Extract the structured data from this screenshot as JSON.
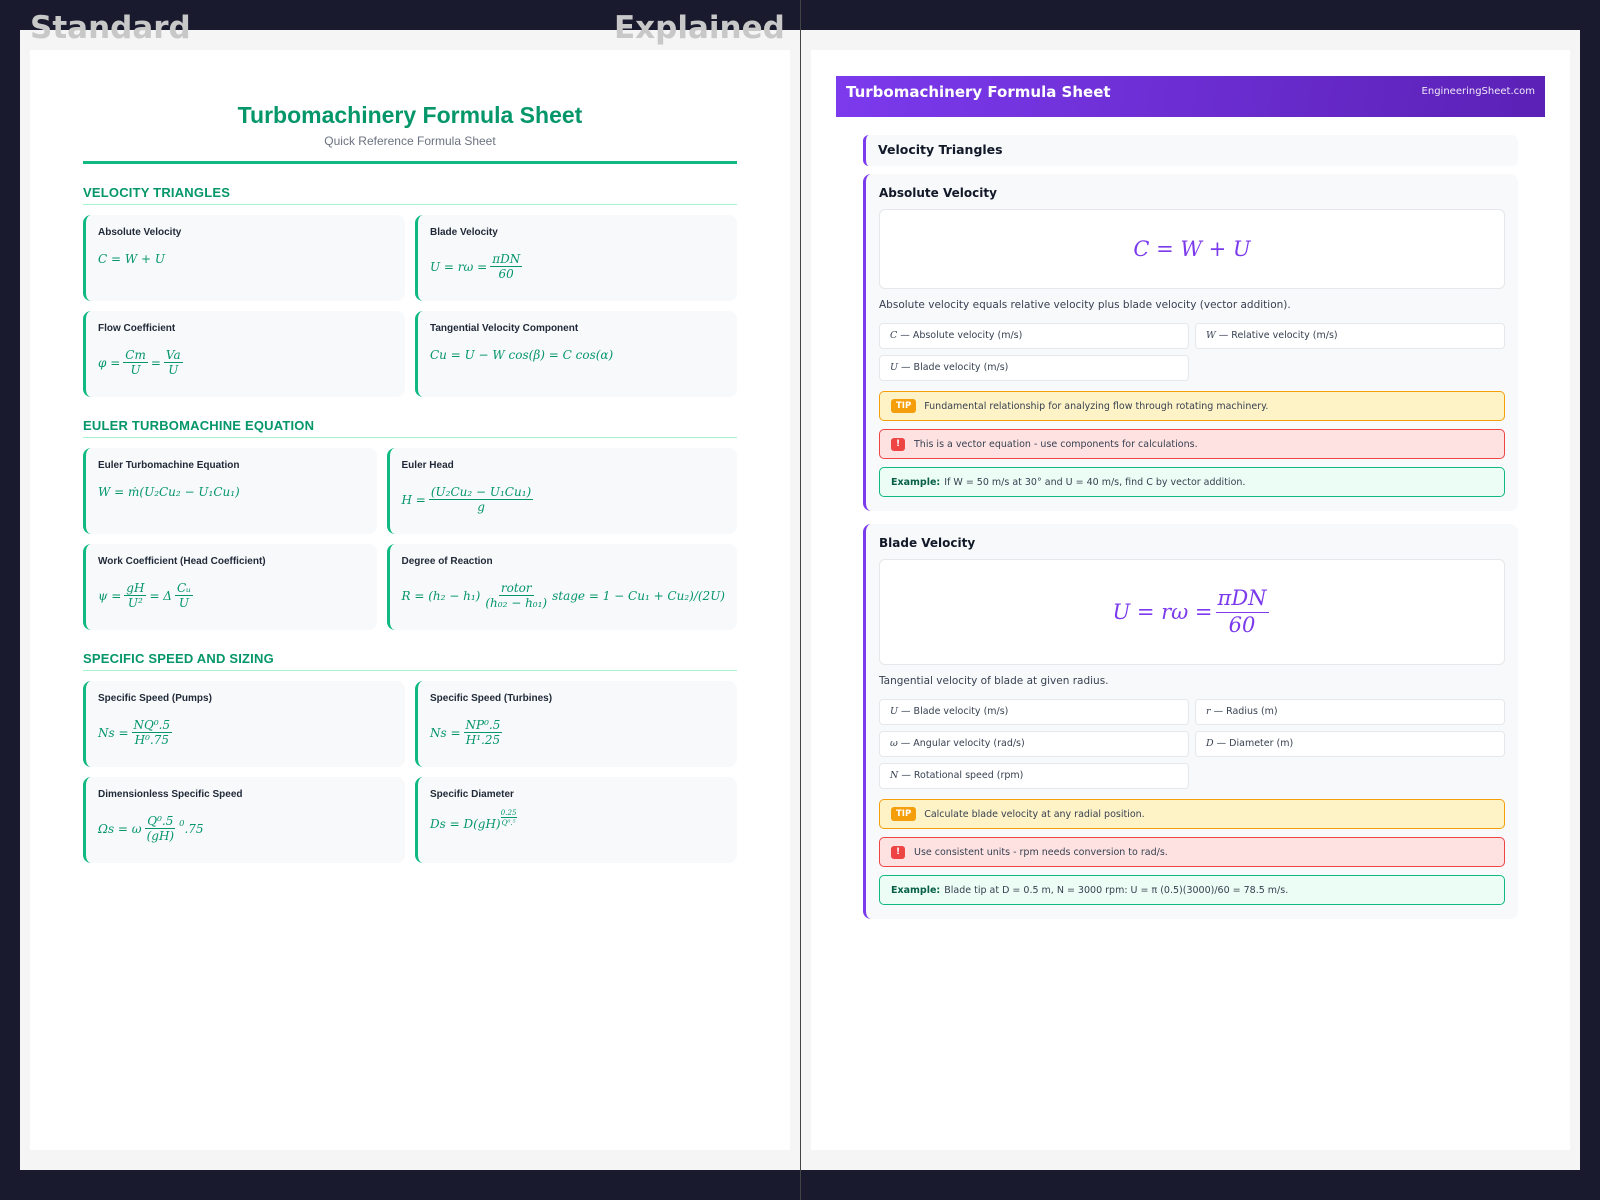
{
  "labels": {
    "standard": "Standard",
    "explained": "Explained"
  },
  "colors": {
    "background": "#1a1a2e",
    "standard_accent": "#059669",
    "explained_accent": "#7c3aed",
    "tip": "#f59e0b",
    "warning": "#ef4444",
    "example": "#10b981"
  },
  "standard": {
    "title": "Turbomachinery Formula Sheet",
    "subtitle": "Quick Reference Formula Sheet",
    "sections": [
      {
        "heading": "VELOCITY TRIANGLES",
        "cards": [
          {
            "name": "Absolute Velocity",
            "formula": [
              "C = W + U"
            ]
          },
          {
            "name": "Blade Velocity",
            "formula": [
              "U = rω =",
              {
                "frac": [
                  "πDN",
                  "60"
                ]
              }
            ]
          },
          {
            "name": "Flow Coefficient",
            "formula": [
              "φ =",
              {
                "frac": [
                  "Cm",
                  "U"
                ]
              },
              "=",
              {
                "frac": [
                  "Va",
                  "U"
                ]
              }
            ]
          },
          {
            "name": "Tangential Velocity Component",
            "formula": [
              "Cu = U − W cos(β) = C cos(α)"
            ]
          }
        ]
      },
      {
        "heading": "EULER TURBOMACHINE EQUATION",
        "cards": [
          {
            "name": "Euler Turbomachine Equation",
            "formula": [
              "W = ṁ(U₂Cu₂ − U₁Cu₁)"
            ]
          },
          {
            "name": "Euler Head",
            "formula": [
              "H =",
              {
                "frac": [
                  "(U₂Cu₂ − U₁Cu₁)",
                  "g"
                ]
              }
            ]
          },
          {
            "name": "Work Coefficient (Head Coefficient)",
            "formula": [
              "ψ =",
              {
                "frac": [
                  "gH",
                  "U²"
                ]
              },
              "= Δ",
              {
                "frac": [
                  "Cᵤ",
                  "U"
                ]
              }
            ]
          },
          {
            "name": "Degree of Reaction",
            "formula": [
              "R = (h₂ − h₁)",
              {
                "frac": [
                  "rotor",
                  "(h₀₂ − h₀₁)"
                ]
              },
              "stage = 1 − Cu₁ + Cu₂)/(2U)"
            ]
          }
        ]
      },
      {
        "heading": "SPECIFIC SPEED AND SIZING",
        "cards": [
          {
            "name": "Specific Speed (Pumps)",
            "formula": [
              "Ns =",
              {
                "frac": [
                  "NQ⁰.5",
                  "H⁰.75"
                ]
              }
            ]
          },
          {
            "name": "Specific Speed (Turbines)",
            "formula": [
              "Ns =",
              {
                "frac": [
                  "NP⁰.5",
                  "H¹.25"
                ]
              }
            ]
          },
          {
            "name": "Dimensionless Specific Speed",
            "formula": [
              "Ωs = ω",
              {
                "frac": [
                  "Q⁰.5",
                  "(gH)"
                ]
              },
              {
                "sup": "0"
              },
              ".75"
            ]
          },
          {
            "name": "Specific Diameter",
            "formula": [
              "Ds = D(gH)",
              {
                "supfrac": [
                  "0.25",
                  "Q⁰.⁵"
                ]
              }
            ]
          }
        ]
      }
    ]
  },
  "explained": {
    "header_title": "Turbomachinery Formula Sheet",
    "header_site": "EngineeringSheet.com",
    "section": "Velocity Triangles",
    "tip_badge": "TIP",
    "warn_badge": "!",
    "example_label": "Example:",
    "cards": [
      {
        "name": "Absolute Velocity",
        "formula": [
          "C = W + U"
        ],
        "description": "Absolute velocity equals relative velocity plus blade velocity (vector addition).",
        "vars": [
          {
            "sym": "C",
            "desc": " — Absolute velocity (m/s)"
          },
          {
            "sym": "W",
            "desc": " — Relative velocity (m/s)"
          },
          {
            "sym": "U",
            "desc": " — Blade velocity (m/s)"
          }
        ],
        "tip": "Fundamental relationship for analyzing flow through rotating machinery.",
        "warning": "This is a vector equation - use components for calculations.",
        "example": "If W = 50 m/s at 30° and U = 40 m/s, find C by vector addition."
      },
      {
        "name": "Blade Velocity",
        "formula": [
          "U = rω =",
          {
            "frac": [
              "πDN",
              "60"
            ]
          }
        ],
        "description": "Tangential velocity of blade at given radius.",
        "vars": [
          {
            "sym": "U",
            "desc": " — Blade velocity (m/s)"
          },
          {
            "sym": "r",
            "desc": " — Radius (m)"
          },
          {
            "sym": "ω",
            "desc": " — Angular velocity (rad/s)"
          },
          {
            "sym": "D",
            "desc": " — Diameter (m)"
          },
          {
            "sym": "N",
            "desc": " — Rotational speed (rpm)"
          }
        ],
        "tip": "Calculate blade velocity at any radial position.",
        "warning": "Use consistent units - rpm needs conversion to rad/s.",
        "example": "Blade tip at D = 0.5 m, N = 3000 rpm: U = π (0.5)(3000)/60 = 78.5 m/s."
      }
    ]
  }
}
